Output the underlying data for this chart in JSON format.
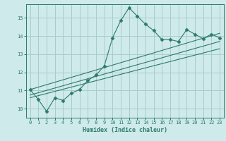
{
  "title": "",
  "xlabel": "Humidex (Indice chaleur)",
  "ylabel": "",
  "background_color": "#ceeaea",
  "grid_color": "#aacccc",
  "line_color": "#2d7a6a",
  "xlim": [
    -0.5,
    23.5
  ],
  "ylim": [
    9.5,
    15.75
  ],
  "yticks": [
    10,
    11,
    12,
    13,
    14,
    15
  ],
  "xticks": [
    0,
    1,
    2,
    3,
    4,
    5,
    6,
    7,
    8,
    9,
    10,
    11,
    12,
    13,
    14,
    15,
    16,
    17,
    18,
    19,
    20,
    21,
    22,
    23
  ],
  "series": [
    {
      "x": [
        0,
        1,
        2,
        3,
        4,
        5,
        6,
        7,
        8,
        9,
        10,
        11,
        12,
        13,
        14,
        15,
        16,
        17,
        18,
        19,
        20,
        21,
        22,
        23
      ],
      "y": [
        11.05,
        10.5,
        9.85,
        10.6,
        10.45,
        10.85,
        11.05,
        11.55,
        11.85,
        12.35,
        13.9,
        14.85,
        15.55,
        15.1,
        14.65,
        14.3,
        13.8,
        13.8,
        13.7,
        14.35,
        14.1,
        13.85,
        14.1,
        13.9
      ],
      "marker": "D",
      "markersize": 2.5
    },
    {
      "x": [
        0,
        23
      ],
      "y": [
        10.6,
        13.3
      ],
      "marker": null,
      "markersize": 0
    },
    {
      "x": [
        0,
        23
      ],
      "y": [
        10.75,
        13.7
      ],
      "marker": null,
      "markersize": 0
    },
    {
      "x": [
        0,
        23
      ],
      "y": [
        11.05,
        14.15
      ],
      "marker": null,
      "markersize": 0
    }
  ]
}
